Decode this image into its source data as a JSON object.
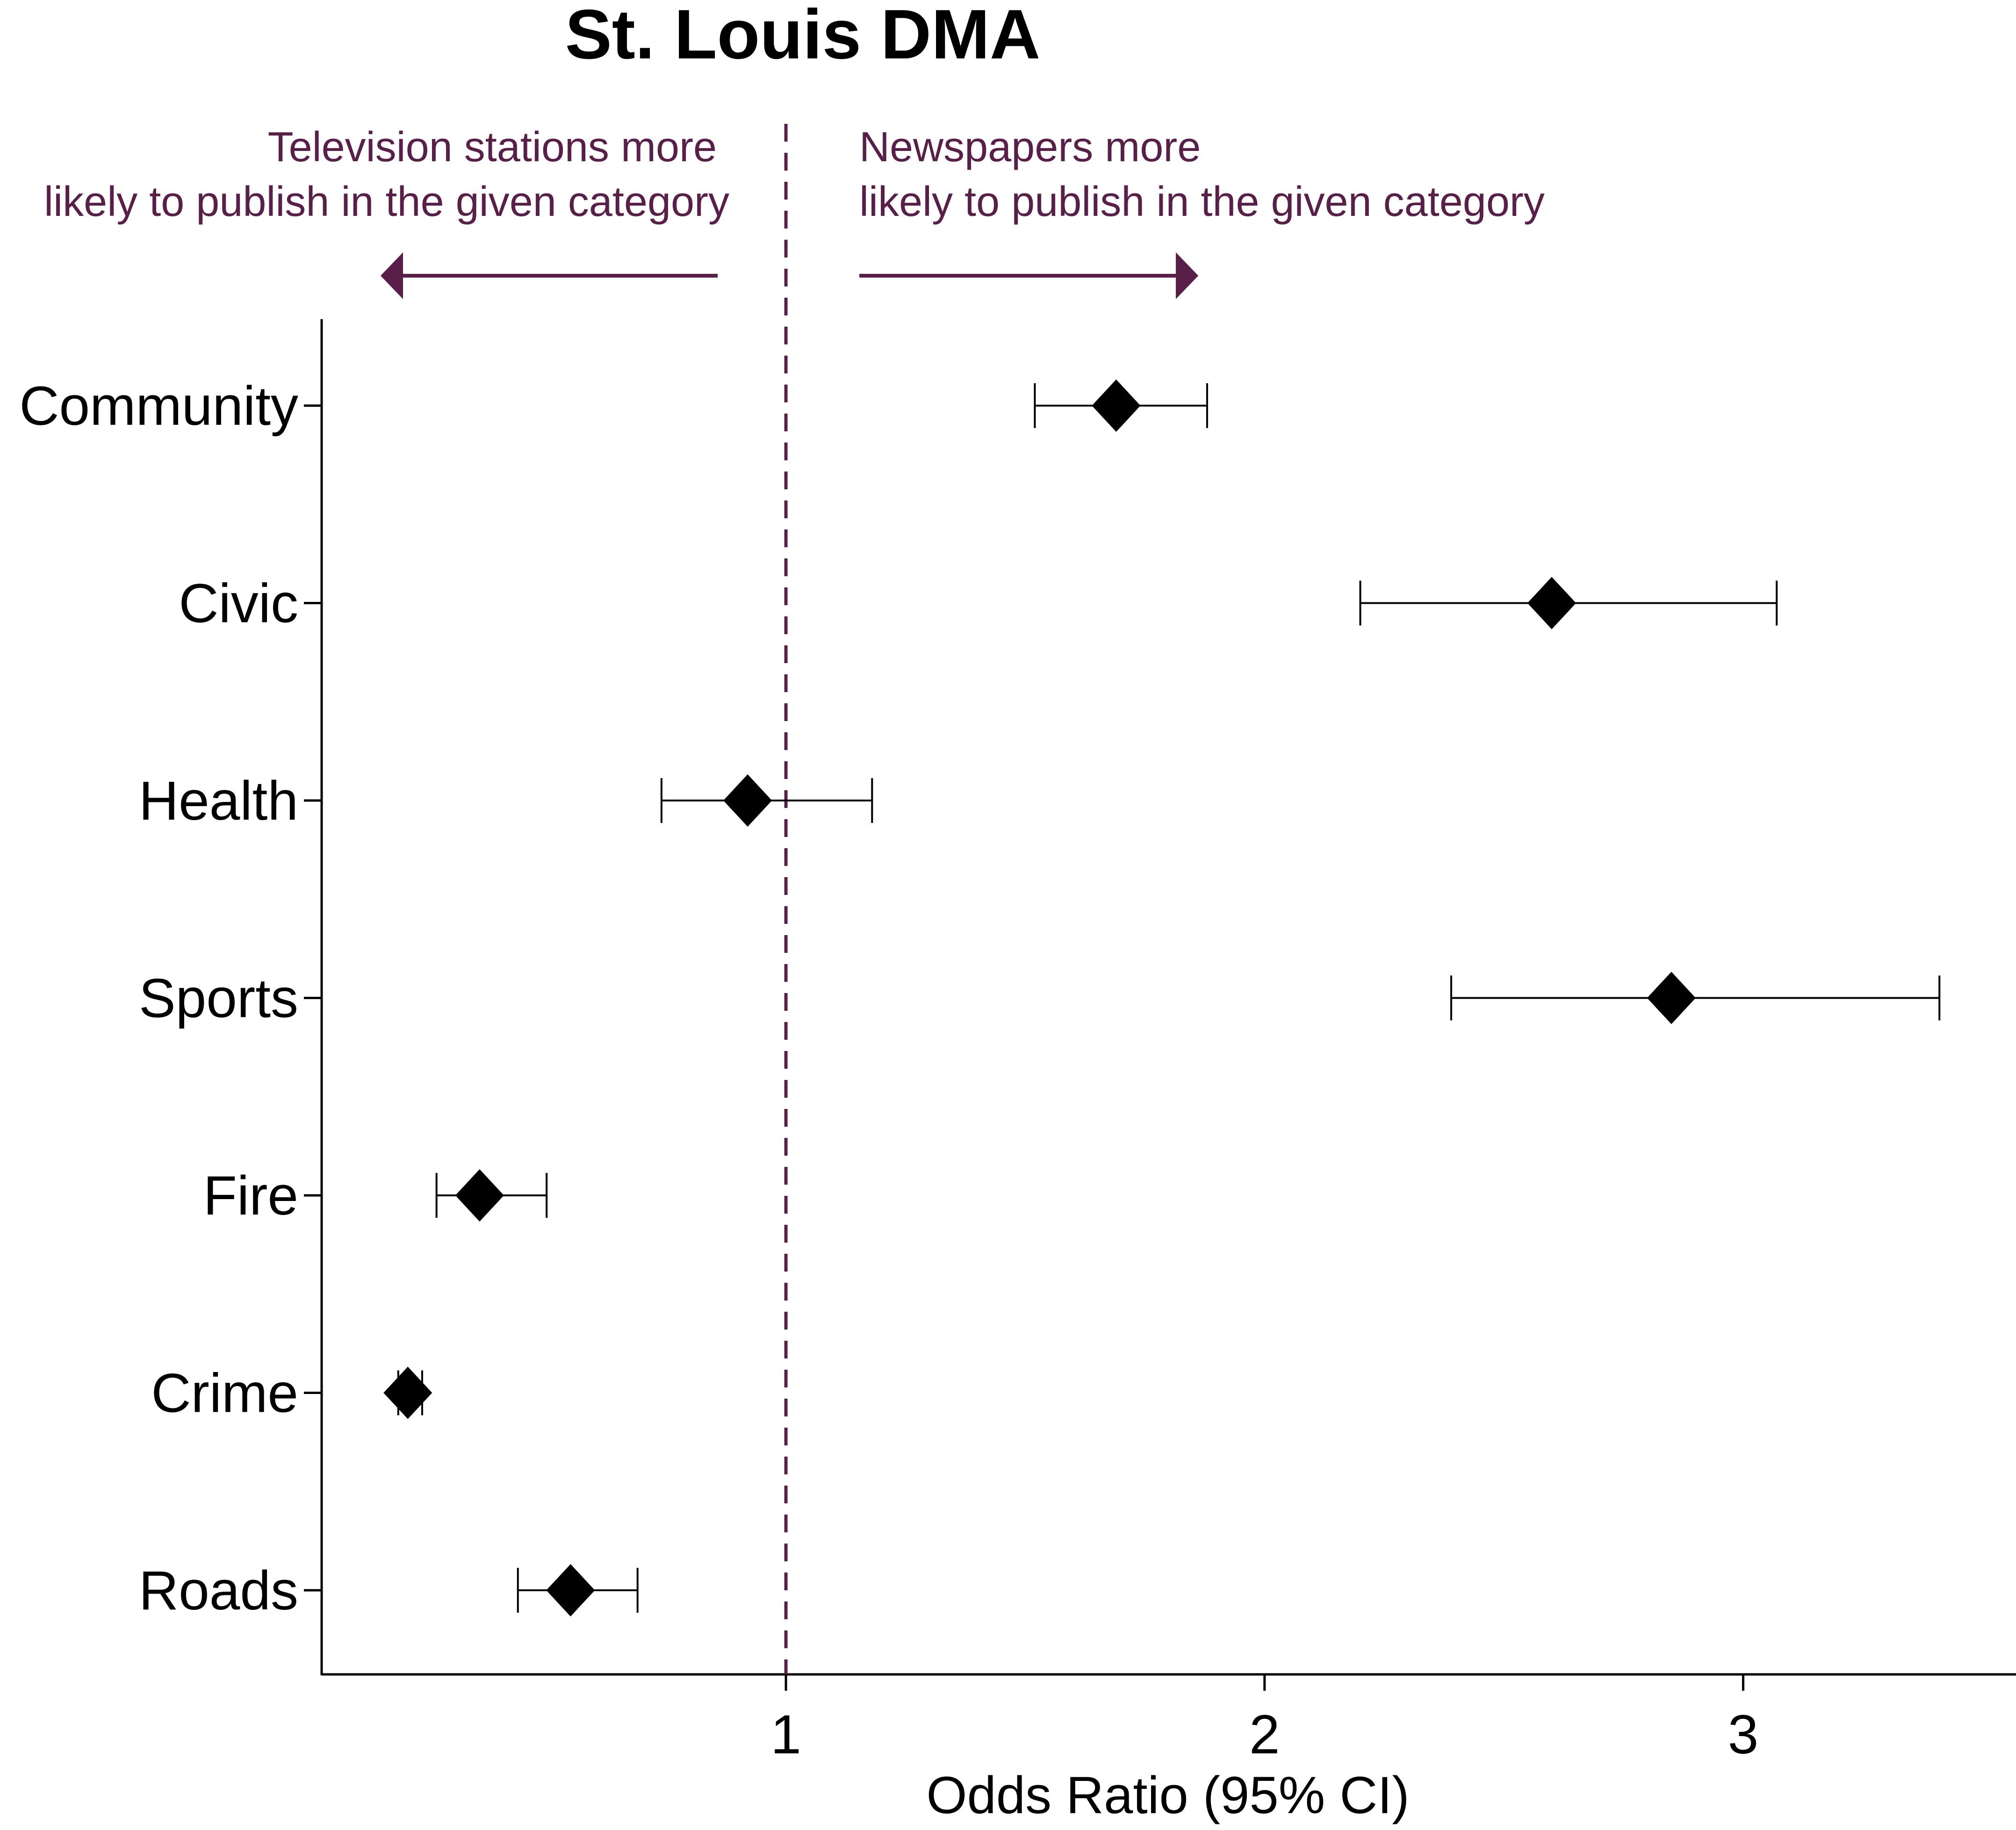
{
  "chart_data": {
    "type": "scatter",
    "title": "St. Louis DMA",
    "xlabel": "Odds Ratio (95% CI)",
    "ylabel": "",
    "xlim": [
      0.03,
      3.57
    ],
    "xticks": [
      1,
      2,
      3
    ],
    "xtick_labels": [
      "1",
      "2",
      "3"
    ],
    "reference_line": {
      "x": 1,
      "style": "dashed"
    },
    "categories": [
      "Community",
      "Civic",
      "Health",
      "Sports",
      "Fire",
      "Crime",
      "Roads"
    ],
    "series": [
      {
        "estimate": [
          1.69,
          2.6,
          0.92,
          2.85,
          0.36,
          0.21,
          0.55
        ],
        "ci_low": [
          1.52,
          2.2,
          0.74,
          2.39,
          0.27,
          0.19,
          0.44
        ],
        "ci_high": [
          1.88,
          3.07,
          1.18,
          3.41,
          0.5,
          0.24,
          0.69
        ],
        "marker": "diamond"
      }
    ],
    "annotations": {
      "left": [
        "Television stations more",
        "likely to publish in the given category"
      ],
      "right": [
        "Newspapers more",
        "likely to publish in the given category"
      ]
    },
    "grid": false
  },
  "colors": {
    "accent": "#5a1f48",
    "marks": "#000000",
    "background": "#ffffff"
  }
}
